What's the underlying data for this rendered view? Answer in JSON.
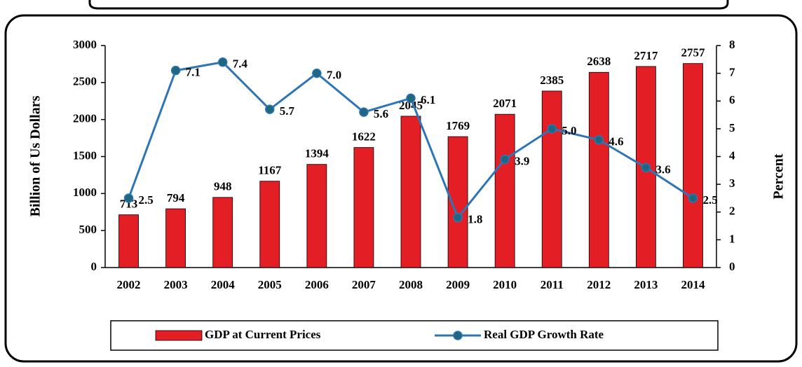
{
  "chart_data": {
    "type": "bar_line",
    "categories": [
      "2002",
      "2003",
      "2004",
      "2005",
      "2006",
      "2007",
      "2008",
      "2009",
      "2010",
      "2011",
      "2012",
      "2013",
      "2014"
    ],
    "series": [
      {
        "name": "GDP at Current Prices",
        "type": "bar",
        "color": "#e31e24",
        "axis": "y",
        "values": [
          713,
          794,
          948,
          1167,
          1394,
          1622,
          2045,
          1769,
          2071,
          2385,
          2638,
          2717,
          2757
        ]
      },
      {
        "name": "Real GDP Growth Rate",
        "type": "line",
        "color": "#2e75b6",
        "marker_color": "#1f6680",
        "axis": "y2",
        "values": [
          2.5,
          7.1,
          7.4,
          5.7,
          7.0,
          5.6,
          6.1,
          1.8,
          3.9,
          5.0,
          4.6,
          3.6,
          2.5
        ],
        "value_labels": [
          "2.5",
          "7.1",
          "7.4",
          "5.7",
          "7.0",
          "5.6",
          "6.1",
          "1.8",
          "3.9",
          "5.0",
          "4.6",
          "3.6",
          "2.5"
        ]
      }
    ],
    "y_label": "Billion of Us Dollars",
    "y2_label": "Percent",
    "ylim": [
      0,
      3000
    ],
    "yticks": [
      0,
      500,
      1000,
      1500,
      2000,
      2500,
      3000
    ],
    "y2lim": [
      0,
      8
    ],
    "y2ticks": [
      0,
      1,
      2,
      3,
      4,
      5,
      6,
      7,
      8
    ],
    "legend": "bottom"
  }
}
